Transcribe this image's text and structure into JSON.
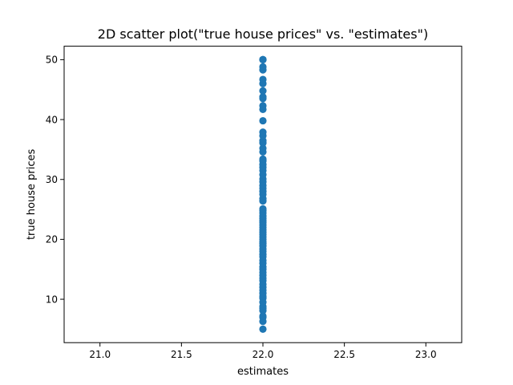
{
  "chart_data": {
    "type": "scatter",
    "title": "2D scatter plot(\"true house prices\" vs. \"estimates\")",
    "xlabel": "estimates",
    "ylabel": "true house prices",
    "xlim": [
      20.78,
      23.22
    ],
    "ylim": [
      2.75,
      52.25
    ],
    "xticks": [
      21.0,
      21.5,
      22.0,
      22.5,
      23.0
    ],
    "yticks": [
      10,
      20,
      30,
      40,
      50
    ],
    "xtick_labels": [
      "21.0",
      "21.5",
      "22.0",
      "22.5",
      "23.0"
    ],
    "ytick_labels": [
      "10",
      "20",
      "30",
      "40",
      "50"
    ],
    "grid": false,
    "marker_color": "#1f77b4",
    "series": [
      {
        "x_constant": 22.0,
        "y": [
          5.0,
          6.3,
          7.0,
          7.2,
          8.1,
          8.5,
          8.8,
          9.5,
          10.2,
          10.5,
          11.0,
          11.5,
          12.0,
          12.5,
          13.1,
          13.5,
          14.0,
          14.5,
          15.0,
          15.4,
          16.0,
          16.5,
          17.1,
          17.5,
          18.0,
          18.4,
          18.9,
          19.3,
          19.6,
          20.0,
          20.4,
          20.8,
          21.2,
          21.6,
          22.0,
          22.4,
          22.8,
          23.1,
          23.5,
          23.9,
          24.4,
          24.8,
          25.1,
          26.4,
          26.8,
          27.5,
          28.0,
          28.5,
          29.0,
          29.6,
          30.1,
          30.8,
          31.5,
          32.0,
          32.5,
          33.1,
          33.4,
          34.6,
          35.2,
          36.1,
          36.5,
          37.3,
          37.9,
          39.8,
          41.7,
          42.3,
          43.5,
          43.8,
          44.8,
          46.0,
          46.7,
          48.3,
          48.8,
          50.0,
          50.0,
          50.0
        ]
      }
    ]
  }
}
